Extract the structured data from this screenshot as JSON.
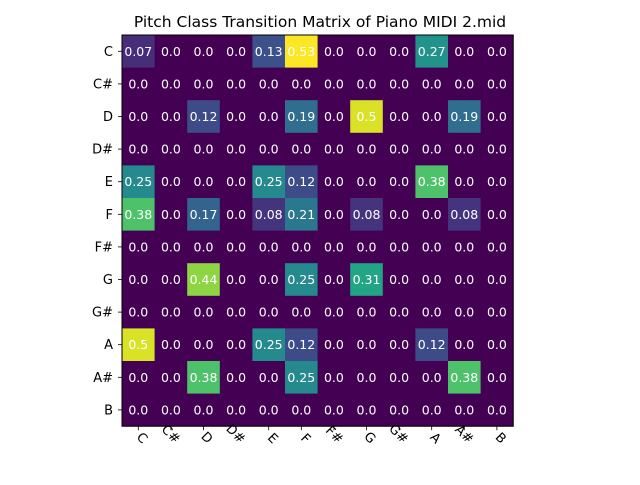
{
  "chart_data": {
    "type": "heatmap",
    "title": "Pitch Class Transition Matrix of Piano MIDI 2.mid",
    "xlabel": "",
    "ylabel": "",
    "colormap": "viridis",
    "vmin": 0.0,
    "vmax": 0.53,
    "x_labels": [
      "C",
      "C#",
      "D",
      "D#",
      "E",
      "F",
      "F#",
      "G",
      "G#",
      "A",
      "A#",
      "B"
    ],
    "y_labels": [
      "C",
      "C#",
      "D",
      "D#",
      "E",
      "F",
      "F#",
      "G",
      "G#",
      "A",
      "A#",
      "B"
    ],
    "x_tick_rotation_deg": 45,
    "grid": false,
    "values": [
      [
        0.07,
        0.0,
        0.0,
        0.0,
        0.13,
        0.53,
        0.0,
        0.0,
        0.0,
        0.27,
        0.0,
        0.0
      ],
      [
        0.0,
        0.0,
        0.0,
        0.0,
        0.0,
        0.0,
        0.0,
        0.0,
        0.0,
        0.0,
        0.0,
        0.0
      ],
      [
        0.0,
        0.0,
        0.12,
        0.0,
        0.0,
        0.19,
        0.0,
        0.5,
        0.0,
        0.0,
        0.19,
        0.0
      ],
      [
        0.0,
        0.0,
        0.0,
        0.0,
        0.0,
        0.0,
        0.0,
        0.0,
        0.0,
        0.0,
        0.0,
        0.0
      ],
      [
        0.25,
        0.0,
        0.0,
        0.0,
        0.25,
        0.12,
        0.0,
        0.0,
        0.0,
        0.38,
        0.0,
        0.0
      ],
      [
        0.38,
        0.0,
        0.17,
        0.0,
        0.08,
        0.21,
        0.0,
        0.08,
        0.0,
        0.0,
        0.08,
        0.0
      ],
      [
        0.0,
        0.0,
        0.0,
        0.0,
        0.0,
        0.0,
        0.0,
        0.0,
        0.0,
        0.0,
        0.0,
        0.0
      ],
      [
        0.0,
        0.0,
        0.44,
        0.0,
        0.0,
        0.25,
        0.0,
        0.31,
        0.0,
        0.0,
        0.0,
        0.0
      ],
      [
        0.0,
        0.0,
        0.0,
        0.0,
        0.0,
        0.0,
        0.0,
        0.0,
        0.0,
        0.0,
        0.0,
        0.0
      ],
      [
        0.5,
        0.0,
        0.0,
        0.0,
        0.25,
        0.12,
        0.0,
        0.0,
        0.0,
        0.12,
        0.0,
        0.0
      ],
      [
        0.0,
        0.0,
        0.38,
        0.0,
        0.0,
        0.25,
        0.0,
        0.0,
        0.0,
        0.0,
        0.38,
        0.0
      ],
      [
        0.0,
        0.0,
        0.0,
        0.0,
        0.0,
        0.0,
        0.0,
        0.0,
        0.0,
        0.0,
        0.0,
        0.0
      ]
    ],
    "value_labels": [
      [
        "0.07",
        "0.0",
        "0.0",
        "0.0",
        "0.13",
        "0.53",
        "0.0",
        "0.0",
        "0.0",
        "0.27",
        "0.0",
        "0.0"
      ],
      [
        "0.0",
        "0.0",
        "0.0",
        "0.0",
        "0.0",
        "0.0",
        "0.0",
        "0.0",
        "0.0",
        "0.0",
        "0.0",
        "0.0"
      ],
      [
        "0.0",
        "0.0",
        "0.12",
        "0.0",
        "0.0",
        "0.19",
        "0.0",
        "0.5",
        "0.0",
        "0.0",
        "0.19",
        "0.0"
      ],
      [
        "0.0",
        "0.0",
        "0.0",
        "0.0",
        "0.0",
        "0.0",
        "0.0",
        "0.0",
        "0.0",
        "0.0",
        "0.0",
        "0.0"
      ],
      [
        "0.25",
        "0.0",
        "0.0",
        "0.0",
        "0.25",
        "0.12",
        "0.0",
        "0.0",
        "0.0",
        "0.38",
        "0.0",
        "0.0"
      ],
      [
        "0.38",
        "0.0",
        "0.17",
        "0.0",
        "0.08",
        "0.21",
        "0.0",
        "0.08",
        "0.0",
        "0.0",
        "0.08",
        "0.0"
      ],
      [
        "0.0",
        "0.0",
        "0.0",
        "0.0",
        "0.0",
        "0.0",
        "0.0",
        "0.0",
        "0.0",
        "0.0",
        "0.0",
        "0.0"
      ],
      [
        "0.0",
        "0.0",
        "0.44",
        "0.0",
        "0.0",
        "0.25",
        "0.0",
        "0.31",
        "0.0",
        "0.0",
        "0.0",
        "0.0"
      ],
      [
        "0.0",
        "0.0",
        "0.0",
        "0.0",
        "0.0",
        "0.0",
        "0.0",
        "0.0",
        "0.0",
        "0.0",
        "0.0",
        "0.0"
      ],
      [
        "0.5",
        "0.0",
        "0.0",
        "0.0",
        "0.25",
        "0.12",
        "0.0",
        "0.0",
        "0.0",
        "0.12",
        "0.0",
        "0.0"
      ],
      [
        "0.0",
        "0.0",
        "0.38",
        "0.0",
        "0.0",
        "0.25",
        "0.0",
        "0.0",
        "0.0",
        "0.0",
        "0.38",
        "0.0"
      ],
      [
        "0.0",
        "0.0",
        "0.0",
        "0.0",
        "0.0",
        "0.0",
        "0.0",
        "0.0",
        "0.0",
        "0.0",
        "0.0",
        "0.0"
      ]
    ]
  }
}
